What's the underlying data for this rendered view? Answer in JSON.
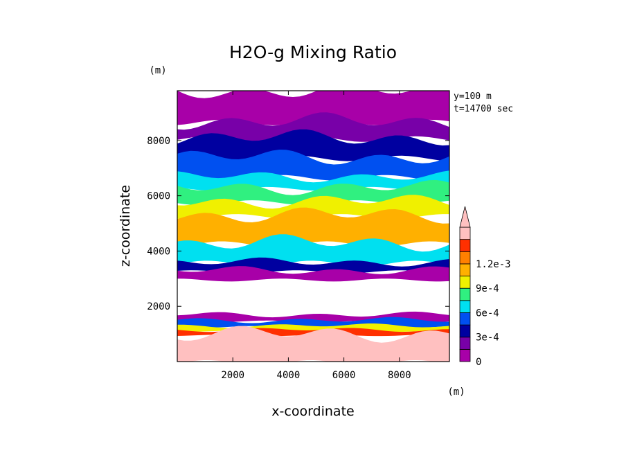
{
  "chart_data": {
    "type": "heatmap",
    "title": "H2O-g Mixing Ratio",
    "xlabel": "x-coordinate",
    "ylabel": "z-coordinate",
    "x_unit": "(m)",
    "y_unit": "(m)",
    "xlim": [
      0,
      9800
    ],
    "ylim": [
      0,
      9800
    ],
    "x_ticks": [
      "2000",
      "4000",
      "6000",
      "8000"
    ],
    "y_ticks": [
      "2000",
      "4000",
      "6000",
      "8000"
    ],
    "annotations": [
      "y=100 m",
      "t=14700 sec"
    ],
    "colorbar": {
      "levels": [
        0,
        0.00015,
        0.0003,
        0.00045,
        0.0006,
        0.00075,
        0.0009,
        0.00105,
        0.0012
      ],
      "labels": [
        "0",
        "3e-4",
        "6e-4",
        "9e-4",
        "1.2e-3"
      ],
      "colors": [
        "#a800a8",
        "#7800a8",
        "#0000a0",
        "#0050f0",
        "#00e0f0",
        "#30f080",
        "#f0f000",
        "#ffb000",
        "#ff8000",
        "#ff3000",
        "#ffc0c0"
      ],
      "extend": "max"
    },
    "bands": [
      {
        "z": [
          9800,
          8700
        ],
        "value_class": 0
      },
      {
        "z": [
          8700,
          8100
        ],
        "value_class": 1
      },
      {
        "z": [
          8100,
          7400
        ],
        "value_class": 2
      },
      {
        "z": [
          7400,
          6700
        ],
        "value_class": 3
      },
      {
        "z": [
          6700,
          6300
        ],
        "value_class": 4
      },
      {
        "z": [
          6300,
          5800
        ],
        "value_class": 5
      },
      {
        "z": [
          5800,
          5300
        ],
        "value_class": 6
      },
      {
        "z": [
          5300,
          4300
        ],
        "value_class": 7
      },
      {
        "z": [
          4300,
          3600
        ],
        "value_class": 4
      },
      {
        "z": [
          3600,
          3300
        ],
        "value_class": 2
      },
      {
        "z": [
          3300,
          3000
        ],
        "value_class": 0
      },
      {
        "z": [
          1700,
          1500
        ],
        "value_class": 0
      },
      {
        "z": [
          1500,
          1300
        ],
        "value_class": 3
      },
      {
        "z": [
          1300,
          1150
        ],
        "value_class": 6
      },
      {
        "z": [
          1150,
          1000
        ],
        "value_class": 9
      },
      {
        "z": [
          1000,
          0
        ],
        "value_class": 10
      }
    ]
  }
}
